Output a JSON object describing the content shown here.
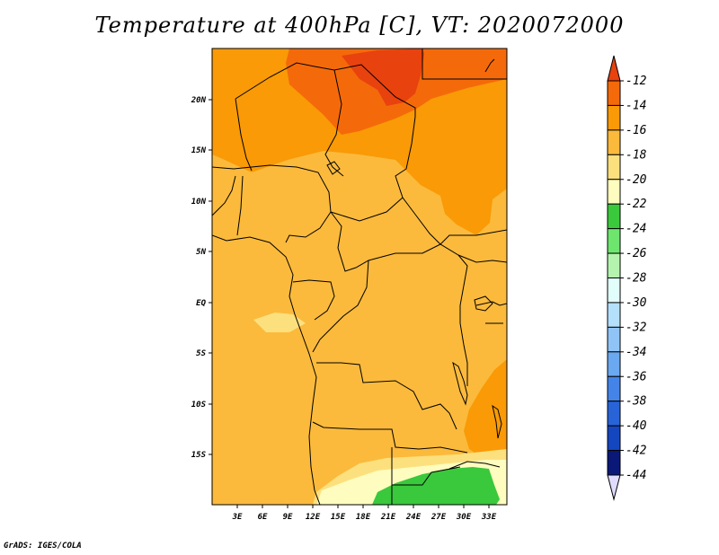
{
  "title": "Temperature at 400hPa [C], VT: 2020072000",
  "credit": "GrADS: IGES/COLA",
  "map": {
    "lon_labels": [
      "3E",
      "6E",
      "9E",
      "12E",
      "15E",
      "18E",
      "21E",
      "24E",
      "27E",
      "30E",
      "33E"
    ],
    "lat_labels": [
      "20N",
      "15N",
      "10N",
      "5N",
      "EQ",
      "5S",
      "10S",
      "15S"
    ]
  },
  "colorbar": {
    "labels": [
      "-12",
      "-14",
      "-16",
      "-18",
      "-20",
      "-22",
      "-24",
      "-26",
      "-28",
      "-30",
      "-32",
      "-34",
      "-36",
      "-38",
      "-40",
      "-42",
      "-44"
    ],
    "colors": [
      "#e8420e",
      "#f46a0a",
      "#f99a06",
      "#fbba3c",
      "#fde07e",
      "#fefcbe",
      "#3ac83c",
      "#6ee66e",
      "#b4f4ae",
      "#e2fefa",
      "#b4e0fc",
      "#90c4f6",
      "#6aa8f0",
      "#4484e8",
      "#2864d8",
      "#1446c0",
      "#0a1878"
    ],
    "top_arrow_color": "#e8420e",
    "bottom_arrow_color": "#e0dcff"
  }
}
